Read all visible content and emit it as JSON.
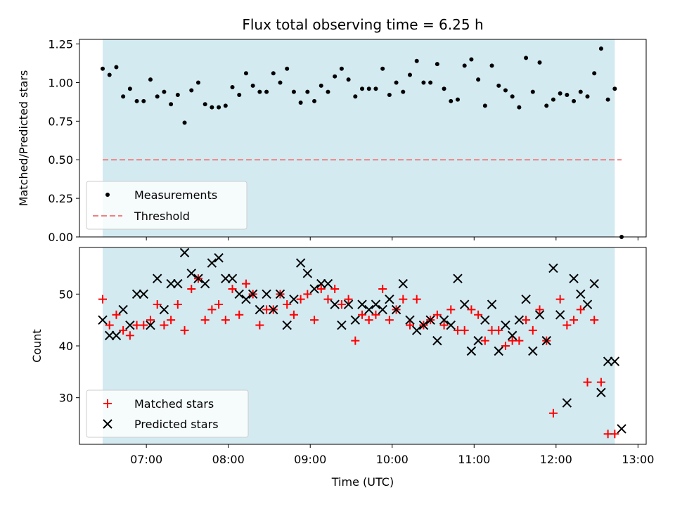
{
  "title": "Flux total observing time = 6.25 h",
  "colors": {
    "shade": "#d3eaf1",
    "measurement": "#000000",
    "threshold": "#f08080",
    "matched": "#ff0000",
    "predicted": "#000000"
  },
  "chart_data": [
    {
      "type": "scatter",
      "panel": "top",
      "ylabel": "Matched/Predicted stars",
      "xlabel": "",
      "xlim": [
        "06:11",
        "13:06"
      ],
      "ylim": [
        0.0,
        1.28
      ],
      "yticks": [
        0.0,
        0.25,
        0.5,
        0.75,
        1.0,
        1.25
      ],
      "ytick_labels": [
        "0.00",
        "0.25",
        "0.50",
        "0.75",
        "1.00",
        "1.25"
      ],
      "shaded_span": [
        "06:28",
        "12:43"
      ],
      "threshold": 0.5,
      "legend": {
        "placement": "lower-left",
        "entries": [
          "Measurements",
          "Threshold"
        ]
      },
      "series": [
        {
          "name": "Measurements",
          "x": [
            "06:28",
            "06:33",
            "06:38",
            "06:43",
            "06:48",
            "06:53",
            "06:58",
            "07:03",
            "07:08",
            "07:13",
            "07:18",
            "07:23",
            "07:28",
            "07:33",
            "07:38",
            "07:43",
            "07:48",
            "07:53",
            "07:58",
            "08:03",
            "08:08",
            "08:13",
            "08:18",
            "08:23",
            "08:28",
            "08:33",
            "08:38",
            "08:43",
            "08:48",
            "08:53",
            "08:58",
            "09:03",
            "09:08",
            "09:13",
            "09:18",
            "09:23",
            "09:28",
            "09:33",
            "09:38",
            "09:43",
            "09:48",
            "09:53",
            "09:58",
            "10:03",
            "10:08",
            "10:13",
            "10:18",
            "10:23",
            "10:28",
            "10:33",
            "10:38",
            "10:43",
            "10:48",
            "10:53",
            "10:58",
            "11:03",
            "11:08",
            "11:13",
            "11:18",
            "11:23",
            "11:28",
            "11:33",
            "11:38",
            "11:43",
            "11:48",
            "11:53",
            "11:58",
            "12:03",
            "12:08",
            "12:13",
            "12:18",
            "12:23",
            "12:28",
            "12:33",
            "12:38",
            "12:43",
            "12:48"
          ],
          "y": [
            1.09,
            1.05,
            1.1,
            0.91,
            0.96,
            0.88,
            0.88,
            1.02,
            0.91,
            0.94,
            0.86,
            0.92,
            0.74,
            0.95,
            1.0,
            0.86,
            0.84,
            0.84,
            0.85,
            0.97,
            0.92,
            1.06,
            0.98,
            0.94,
            0.94,
            1.06,
            1.0,
            1.09,
            0.94,
            0.87,
            0.94,
            0.88,
            0.98,
            0.94,
            1.04,
            1.09,
            1.02,
            0.91,
            0.96,
            0.96,
            0.96,
            1.09,
            0.92,
            1.0,
            0.94,
            1.05,
            1.14,
            1.0,
            1.0,
            1.12,
            0.96,
            0.88,
            0.89,
            1.11,
            1.15,
            1.02,
            0.85,
            1.11,
            0.98,
            0.95,
            0.91,
            0.84,
            1.16,
            0.94,
            1.13,
            0.85,
            0.89,
            0.93,
            0.92,
            0.88,
            0.94,
            0.91,
            1.06,
            1.22,
            0.89,
            0.96,
            0.0
          ]
        }
      ]
    },
    {
      "type": "scatter",
      "panel": "bottom",
      "xlabel": "Time (UTC)",
      "ylabel": "Count",
      "xlim": [
        "06:11",
        "13:06"
      ],
      "ylim": [
        21,
        59
      ],
      "xticks": [
        "07:00",
        "08:00",
        "09:00",
        "10:00",
        "11:00",
        "12:00",
        "13:00"
      ],
      "yticks": [
        30,
        40,
        50
      ],
      "shaded_span": [
        "06:28",
        "12:43"
      ],
      "legend": {
        "placement": "lower-left",
        "entries": [
          "Matched stars",
          "Predicted stars"
        ]
      },
      "x": [
        "06:28",
        "06:33",
        "06:38",
        "06:43",
        "06:48",
        "06:53",
        "06:58",
        "07:03",
        "07:08",
        "07:13",
        "07:18",
        "07:23",
        "07:28",
        "07:33",
        "07:38",
        "07:43",
        "07:48",
        "07:53",
        "07:58",
        "08:03",
        "08:08",
        "08:13",
        "08:18",
        "08:23",
        "08:28",
        "08:33",
        "08:38",
        "08:43",
        "08:48",
        "08:53",
        "08:58",
        "09:03",
        "09:08",
        "09:13",
        "09:18",
        "09:23",
        "09:28",
        "09:33",
        "09:38",
        "09:43",
        "09:48",
        "09:53",
        "09:58",
        "10:03",
        "10:08",
        "10:13",
        "10:18",
        "10:23",
        "10:28",
        "10:33",
        "10:38",
        "10:43",
        "10:48",
        "10:53",
        "10:58",
        "11:03",
        "11:08",
        "11:13",
        "11:18",
        "11:23",
        "11:28",
        "11:33",
        "11:38",
        "11:43",
        "11:48",
        "11:53",
        "11:58",
        "12:03",
        "12:08",
        "12:13",
        "12:18",
        "12:23",
        "12:28",
        "12:33",
        "12:38",
        "12:43",
        "12:48"
      ],
      "series": [
        {
          "name": "Matched stars",
          "marker": "plus",
          "values": [
            49,
            44,
            46,
            43,
            42,
            44,
            44,
            45,
            48,
            44,
            45,
            48,
            43,
            51,
            53,
            45,
            47,
            48,
            45,
            51,
            46,
            52,
            50,
            44,
            47,
            47,
            50,
            48,
            46,
            49,
            50,
            45,
            51,
            49,
            51,
            48,
            49,
            41,
            46,
            45,
            46,
            51,
            45,
            47,
            49,
            44,
            49,
            44,
            45,
            46,
            44,
            47,
            43,
            43,
            47,
            46,
            41,
            43,
            43,
            40,
            41,
            41,
            45,
            43,
            47,
            41,
            27,
            49,
            44,
            45,
            47,
            33,
            45,
            33,
            23,
            23,
            null
          ],
          "y_note": ""
        },
        {
          "name": "Predicted stars",
          "marker": "x",
          "values": [
            45,
            42,
            42,
            47,
            44,
            50,
            50,
            44,
            53,
            47,
            52,
            52,
            58,
            54,
            53,
            52,
            56,
            57,
            53,
            53,
            50,
            49,
            50,
            47,
            50,
            47,
            50,
            44,
            49,
            56,
            54,
            51,
            52,
            52,
            48,
            44,
            48,
            45,
            48,
            47,
            48,
            47,
            49,
            47,
            52,
            45,
            43,
            44,
            45,
            41,
            45,
            44,
            53,
            48,
            39,
            41,
            45,
            48,
            39,
            44,
            42,
            45,
            49,
            39,
            46,
            41,
            55,
            46,
            29,
            53,
            50,
            48,
            52,
            31,
            37,
            37,
            24
          ]
        }
      ]
    }
  ]
}
